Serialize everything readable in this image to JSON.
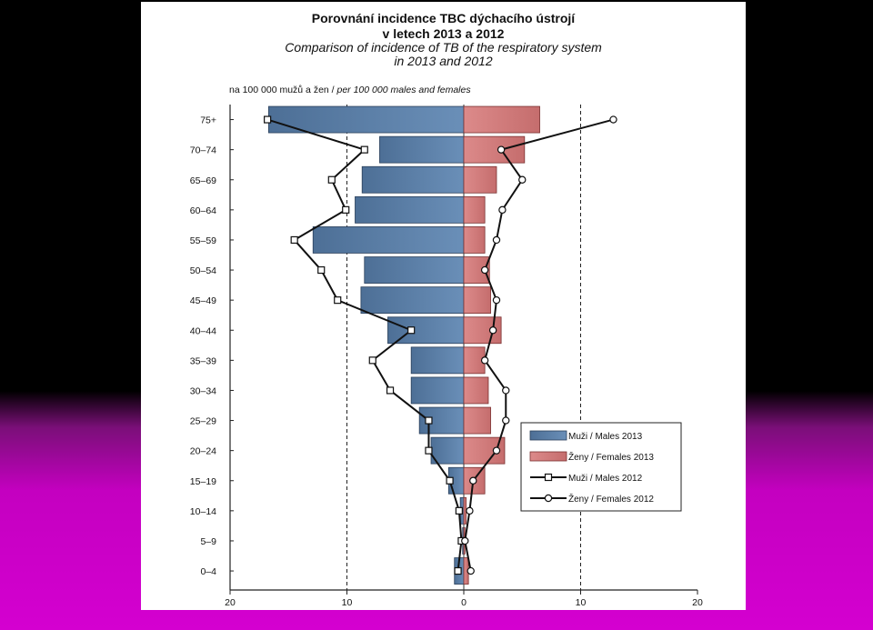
{
  "title": {
    "line1": "Porovnání incidence TBC dýchacího ústrojí",
    "line2": "v letech 2013 a 2012",
    "line3": "Comparison of incidence of TB of the respiratory system",
    "line4": "in 2013 and 2012"
  },
  "unit_note": {
    "prefix": "na 100 000 mužů a žen / ",
    "italic": "per 100 000 males and females"
  },
  "colors": {
    "male_bar": "#6a8fb8",
    "female_bar": "#dc8a8a",
    "line": "#111111",
    "slide_bg": "#ffffff"
  },
  "chart_data": {
    "type": "bar",
    "orientation": "horizontal-population-pyramid",
    "categories": [
      "75+",
      "70–74",
      "65–69",
      "60–64",
      "55–59",
      "50–54",
      "45–49",
      "40–44",
      "35–39",
      "30–34",
      "25–29",
      "20–24",
      "15–19",
      "10–14",
      "5–9",
      "0–4"
    ],
    "xlim": [
      -20,
      20
    ],
    "x_ticks": [
      -20,
      -10,
      0,
      10,
      20
    ],
    "x_tick_labels": [
      "20",
      "10",
      "0",
      "10",
      "20"
    ],
    "dashed_reference_lines": [
      -10,
      10
    ],
    "series": [
      {
        "name": "Muži / Males 2013",
        "kind": "bar",
        "side": "left",
        "values": [
          16.7,
          7.2,
          8.7,
          9.3,
          12.9,
          8.5,
          8.8,
          6.5,
          4.5,
          4.5,
          3.8,
          2.8,
          1.3,
          0.3,
          0.1,
          0.8
        ]
      },
      {
        "name": "Ženy / Females 2013",
        "kind": "bar",
        "side": "right",
        "values": [
          6.5,
          5.2,
          2.8,
          1.8,
          1.8,
          2.2,
          2.3,
          3.2,
          1.8,
          2.1,
          2.3,
          3.5,
          1.8,
          0.2,
          0.1,
          0.4
        ]
      },
      {
        "name": "Muži / Males 2012",
        "kind": "line",
        "marker": "square",
        "side": "left",
        "values": [
          16.8,
          8.5,
          11.3,
          10.1,
          14.5,
          12.2,
          10.8,
          4.5,
          7.8,
          6.3,
          3.0,
          3.0,
          1.2,
          0.4,
          0.2,
          0.5
        ]
      },
      {
        "name": "Ženy / Females 2012",
        "kind": "line",
        "marker": "circle",
        "side": "right",
        "values": [
          12.8,
          3.2,
          5.0,
          3.3,
          2.8,
          1.8,
          2.8,
          2.5,
          1.8,
          3.6,
          3.6,
          2.8,
          0.8,
          0.5,
          0.1,
          0.6
        ]
      }
    ],
    "legend": {
      "placement": "bottom-right",
      "entries": [
        "Muži / Males 2013",
        "Ženy / Females 2013",
        "Muži / Males 2012",
        "Ženy / Females 2012"
      ]
    }
  }
}
